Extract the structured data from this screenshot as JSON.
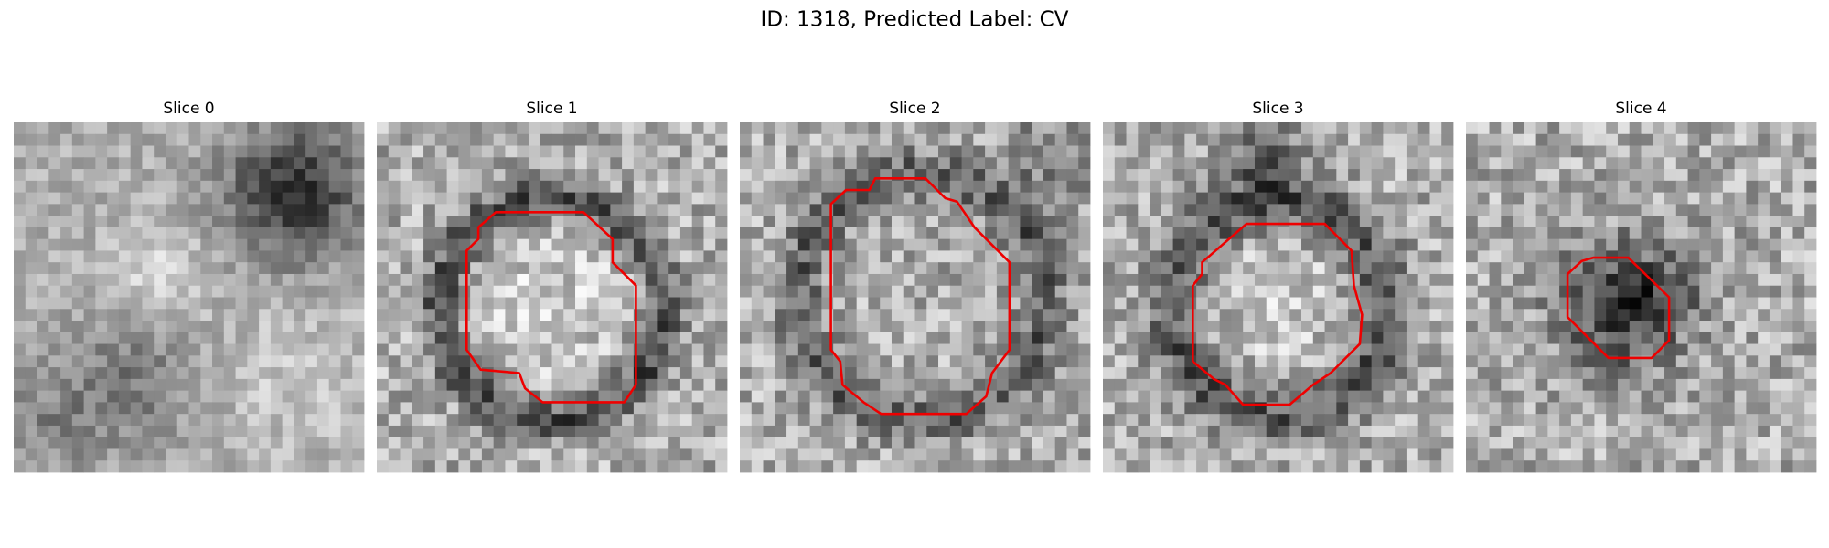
{
  "title": "ID: 1318, Predicted Label: CV",
  "panels": [
    {
      "title": "Slice 0"
    },
    {
      "title": "Slice 1"
    },
    {
      "title": "Slice 2"
    },
    {
      "title": "Slice 3"
    },
    {
      "title": "Slice 4"
    }
  ]
}
